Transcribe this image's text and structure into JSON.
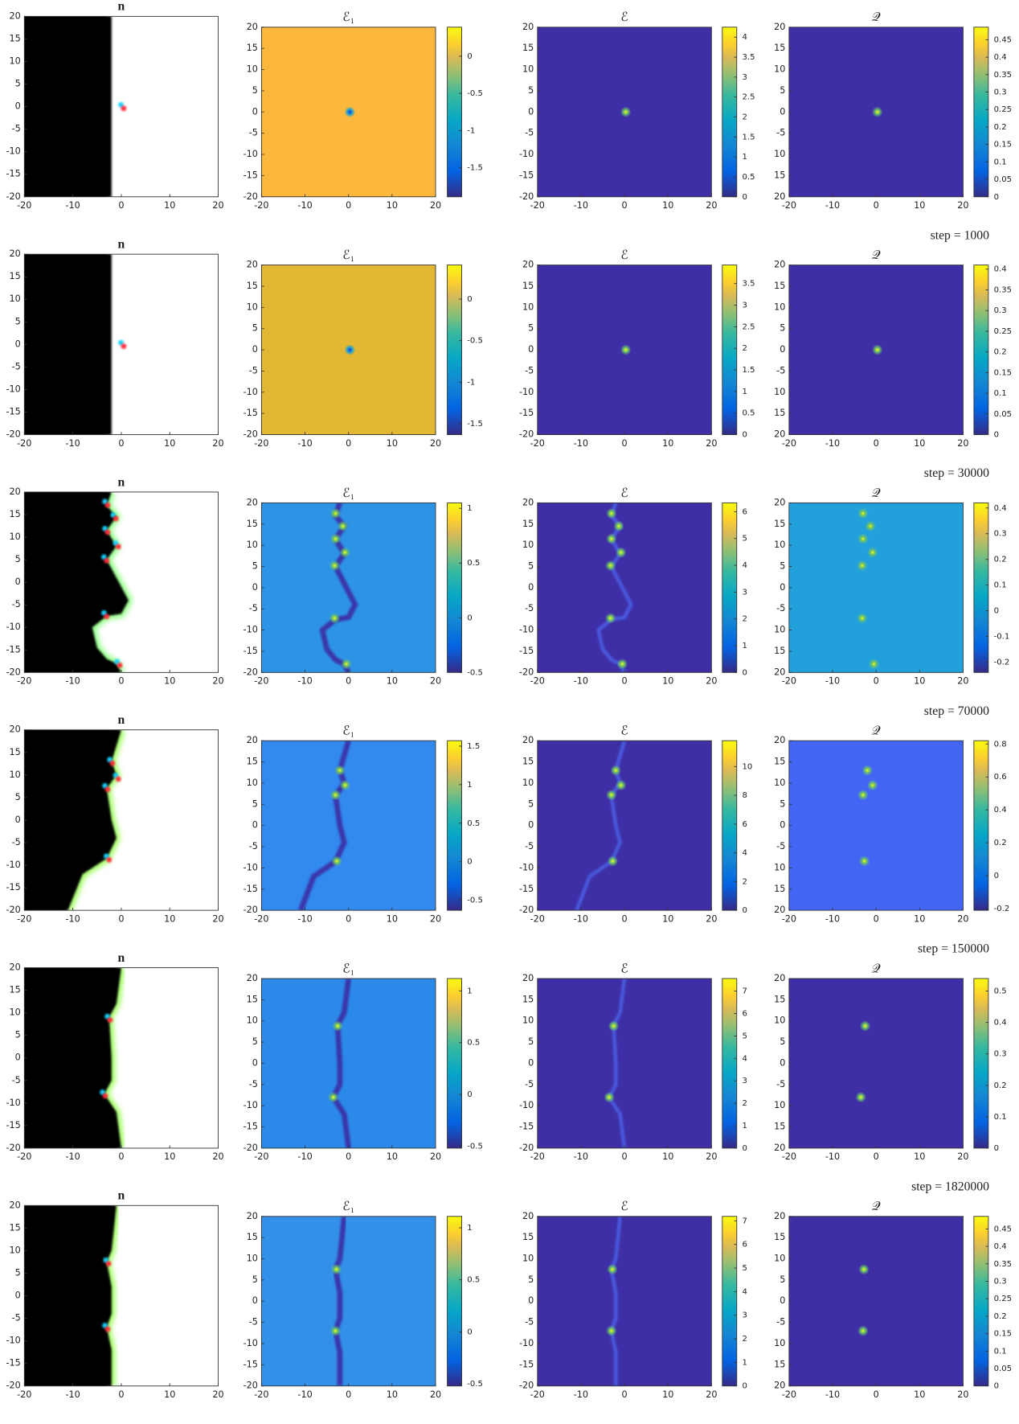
{
  "chart_data": [
    {
      "type": "heatmap",
      "title": "n",
      "xlim": [
        -20,
        20
      ],
      "ylim": [
        -20,
        20
      ],
      "xticks": [
        -20,
        -10,
        0,
        10,
        20
      ],
      "yticks": [
        -20,
        -15,
        -10,
        -5,
        0,
        5,
        10,
        15,
        20
      ]
    },
    {
      "type": "heatmap",
      "title": "ℰ₁",
      "xlim": [
        -20,
        20
      ],
      "ylim": [
        -20,
        20
      ],
      "xticks": [
        -20,
        -10,
        0,
        10,
        20
      ],
      "yticks": [
        -20,
        -15,
        -10,
        -5,
        0,
        5,
        10,
        15,
        20
      ],
      "clim": [
        -1.89,
        0.39
      ],
      "cticks": [
        -1.5,
        -1,
        -0.5,
        0
      ]
    },
    {
      "type": "heatmap",
      "title": "ℰ",
      "xlim": [
        -20,
        20
      ],
      "ylim": [
        -20,
        20
      ],
      "xticks": [
        -20,
        -10,
        0,
        10,
        20
      ],
      "yticks": [
        -20,
        -15,
        -10,
        -5,
        0,
        5,
        10,
        15,
        20
      ],
      "clim": [
        0,
        4.25
      ],
      "cticks": [
        0,
        0.5,
        1,
        1.5,
        2,
        2.5,
        3,
        3.5,
        4
      ]
    },
    {
      "type": "heatmap",
      "title": "𝒬",
      "xlim": [
        -20,
        20
      ],
      "ylim": [
        -20,
        20
      ],
      "xticks": [
        -20,
        -10,
        0,
        10,
        20
      ],
      "yticks": [
        {
          "value": -20,
          "label": "20"
        },
        {
          "value": -15,
          "label": "15"
        },
        {
          "value": -10,
          "label": "10"
        },
        -5,
        0,
        5,
        10,
        15,
        20
      ],
      "clim": [
        0,
        0.486
      ],
      "cticks": [
        0,
        0.05,
        0.1,
        0.15,
        0.2,
        0.25,
        0.3,
        0.35,
        0.4,
        0.45
      ]
    },
    {
      "type": "heatmap",
      "title": "n",
      "xlim": [
        -20,
        20
      ],
      "ylim": [
        -20,
        20
      ],
      "xticks": [
        -20,
        -10,
        0,
        10,
        20
      ],
      "yticks": [
        -20,
        -15,
        -10,
        -5,
        0,
        5,
        10,
        15,
        20
      ]
    },
    {
      "type": "heatmap",
      "title": "ℰ₁",
      "xlim": [
        -20,
        20
      ],
      "ylim": [
        -20,
        20
      ],
      "xticks": [
        -20,
        -10,
        0,
        10,
        20
      ],
      "yticks": [
        -20,
        -15,
        -10,
        -5,
        0,
        5,
        10,
        15,
        20
      ],
      "clim": [
        -1.63,
        0.41
      ],
      "cticks": [
        -1.5,
        -1,
        -0.5,
        0
      ]
    },
    {
      "type": "heatmap",
      "title": "ℰ",
      "xlim": [
        -20,
        20
      ],
      "ylim": [
        -20,
        20
      ],
      "xticks": [
        -20,
        -10,
        0,
        10,
        20
      ],
      "yticks": [
        -20,
        -15,
        -10,
        -5,
        0,
        5,
        10,
        15,
        20
      ],
      "clim": [
        0,
        3.93
      ],
      "cticks": [
        0,
        0.5,
        1,
        1.5,
        2,
        2.5,
        3,
        3.5
      ]
    },
    {
      "type": "heatmap",
      "title": "𝒬",
      "annotation": "step = 1000",
      "xlim": [
        -20,
        20
      ],
      "ylim": [
        -20,
        20
      ],
      "xticks": [
        -20,
        -10,
        0,
        10,
        20
      ],
      "yticks": [
        {
          "value": -20,
          "label": "20"
        },
        {
          "value": -15,
          "label": "15"
        },
        {
          "value": -10,
          "label": "10"
        },
        -5,
        0,
        5,
        10,
        15,
        20
      ],
      "clim": [
        0,
        0.41
      ],
      "cticks": [
        0,
        0.05,
        0.1,
        0.15,
        0.2,
        0.25,
        0.3,
        0.35,
        0.4
      ]
    },
    {
      "type": "heatmap",
      "title": "n",
      "xlim": [
        -20,
        20
      ],
      "ylim": [
        -20,
        20
      ],
      "xticks": [
        -20,
        -10,
        0,
        10,
        20
      ],
      "yticks": [
        -20,
        -15,
        -10,
        -5,
        0,
        5,
        10,
        15,
        20
      ]
    },
    {
      "type": "heatmap",
      "title": "ℰ₁",
      "xlim": [
        -20,
        20
      ],
      "ylim": [
        -20,
        20
      ],
      "xticks": [
        -20,
        -10,
        0,
        10,
        20
      ],
      "yticks": [
        -20,
        -15,
        -10,
        -5,
        0,
        5,
        10,
        15,
        20
      ],
      "clim": [
        -0.5,
        1.05
      ],
      "cticks": [
        -0.5,
        0,
        0.5,
        1
      ]
    },
    {
      "type": "heatmap",
      "title": "ℰ",
      "xlim": [
        -20,
        20
      ],
      "ylim": [
        -20,
        20
      ],
      "xticks": [
        -20,
        -10,
        0,
        10,
        20
      ],
      "yticks": [
        -20,
        -15,
        -10,
        -5,
        0,
        5,
        10,
        15,
        20
      ],
      "clim": [
        0,
        6.33
      ],
      "cticks": [
        0,
        1,
        2,
        3,
        4,
        5,
        6
      ]
    },
    {
      "type": "heatmap",
      "title": "𝒬",
      "annotation": "step = 30000",
      "xlim": [
        -20,
        20
      ],
      "ylim": [
        -20,
        20
      ],
      "xticks": [
        -20,
        -10,
        0,
        10,
        20
      ],
      "yticks": [
        {
          "value": -20,
          "label": "20"
        },
        {
          "value": -15,
          "label": "15"
        },
        {
          "value": -10,
          "label": "10"
        },
        -5,
        0,
        5,
        10,
        15,
        20
      ],
      "clim": [
        -0.24,
        0.42
      ],
      "cticks": [
        -0.2,
        -0.1,
        0,
        0.1,
        0.2,
        0.3,
        0.4
      ]
    },
    {
      "type": "heatmap",
      "title": "n",
      "xlim": [
        -20,
        20
      ],
      "ylim": [
        -20,
        20
      ],
      "xticks": [
        -20,
        -10,
        0,
        10,
        20
      ],
      "yticks": [
        -20,
        -15,
        -10,
        -5,
        0,
        5,
        10,
        15,
        20
      ]
    },
    {
      "type": "heatmap",
      "title": "ℰ₁",
      "xlim": [
        -20,
        20
      ],
      "ylim": [
        -20,
        20
      ],
      "xticks": [
        -20,
        -10,
        0,
        10,
        20
      ],
      "yticks": [
        -20,
        -15,
        -10,
        -5,
        0,
        5,
        10,
        15,
        20
      ],
      "clim": [
        -0.63,
        1.57
      ],
      "cticks": [
        -0.5,
        0,
        0.5,
        1,
        1.5
      ]
    },
    {
      "type": "heatmap",
      "title": "ℰ",
      "xlim": [
        -20,
        20
      ],
      "ylim": [
        -20,
        20
      ],
      "xticks": [
        -20,
        -10,
        0,
        10,
        20
      ],
      "yticks": [
        -20,
        -15,
        -10,
        -5,
        0,
        5,
        10,
        15,
        20
      ],
      "clim": [
        0,
        11.8
      ],
      "cticks": [
        0,
        2,
        4,
        6,
        8,
        10
      ]
    },
    {
      "type": "heatmap",
      "title": "𝒬",
      "annotation": "step = 70000",
      "xlim": [
        -20,
        20
      ],
      "ylim": [
        -20,
        20
      ],
      "xticks": [
        -20,
        -10,
        0,
        10,
        20
      ],
      "yticks": [
        {
          "value": -20,
          "label": "20"
        },
        {
          "value": -15,
          "label": "15"
        },
        {
          "value": -10,
          "label": "10"
        },
        -5,
        0,
        5,
        10,
        15,
        20
      ],
      "clim": [
        -0.21,
        0.82
      ],
      "cticks": [
        -0.2,
        0,
        0.2,
        0.4,
        0.6,
        0.8
      ]
    },
    {
      "type": "heatmap",
      "title": "n",
      "xlim": [
        -20,
        20
      ],
      "ylim": [
        -20,
        20
      ],
      "xticks": [
        -20,
        -10,
        0,
        10,
        20
      ],
      "yticks": [
        -20,
        -15,
        -10,
        -5,
        0,
        5,
        10,
        15,
        20
      ]
    },
    {
      "type": "heatmap",
      "title": "ℰ₁",
      "xlim": [
        -20,
        20
      ],
      "ylim": [
        -20,
        20
      ],
      "xticks": [
        -20,
        -10,
        0,
        10,
        20
      ],
      "yticks": [
        -20,
        -15,
        -10,
        -5,
        0,
        5,
        10,
        15,
        20
      ],
      "clim": [
        -0.52,
        1.12
      ],
      "cticks": [
        -0.5,
        0,
        0.5,
        1
      ]
    },
    {
      "type": "heatmap",
      "title": "ℰ",
      "xlim": [
        -20,
        20
      ],
      "ylim": [
        -20,
        20
      ],
      "xticks": [
        -20,
        -10,
        0,
        10,
        20
      ],
      "yticks": [
        -20,
        -15,
        -10,
        -5,
        0,
        5,
        10,
        15,
        20
      ],
      "clim": [
        0,
        7.56
      ],
      "cticks": [
        0,
        1,
        2,
        3,
        4,
        5,
        6,
        7
      ]
    },
    {
      "type": "heatmap",
      "title": "𝒬",
      "annotation": "step = 150000",
      "xlim": [
        -20,
        20
      ],
      "ylim": [
        -20,
        20
      ],
      "xticks": [
        -20,
        -10,
        0,
        10,
        20
      ],
      "yticks": [
        {
          "value": -20,
          "label": "20"
        },
        {
          "value": -15,
          "label": "15"
        },
        {
          "value": -10,
          "label": "10"
        },
        -5,
        0,
        5,
        10,
        15,
        20
      ],
      "clim": [
        0,
        0.54
      ],
      "cticks": [
        0,
        0.1,
        0.2,
        0.3,
        0.4,
        0.5
      ]
    },
    {
      "type": "heatmap",
      "title": "n",
      "xlim": [
        -20,
        20
      ],
      "ylim": [
        -20,
        20
      ],
      "xticks": [
        -20,
        -10,
        0,
        10,
        20
      ],
      "yticks": [
        -20,
        -15,
        -10,
        -5,
        0,
        5,
        10,
        15,
        20
      ]
    },
    {
      "type": "heatmap",
      "title": "ℰ₁",
      "xlim": [
        -20,
        20
      ],
      "ylim": [
        -20,
        20
      ],
      "xticks": [
        -20,
        -10,
        0,
        10,
        20
      ],
      "yticks": [
        -20,
        -15,
        -10,
        -5,
        0,
        5,
        10,
        15,
        20
      ],
      "clim": [
        -0.52,
        1.11
      ],
      "cticks": [
        -0.5,
        0,
        0.5,
        1
      ]
    },
    {
      "type": "heatmap",
      "title": "ℰ",
      "xlim": [
        -20,
        20
      ],
      "ylim": [
        -20,
        20
      ],
      "xticks": [
        -20,
        -10,
        0,
        10,
        20
      ],
      "yticks": [
        -20,
        -15,
        -10,
        -5,
        0,
        5,
        10,
        15,
        20
      ],
      "clim": [
        0,
        7.19
      ],
      "cticks": [
        0,
        1,
        2,
        3,
        4,
        5,
        6,
        7
      ]
    },
    {
      "type": "heatmap",
      "title": "𝒬",
      "annotation": "step = 1820000",
      "xlim": [
        -20,
        20
      ],
      "ylim": [
        -20,
        20
      ],
      "xticks": [
        -20,
        -10,
        0,
        10,
        20
      ],
      "yticks": [
        {
          "value": -20,
          "label": "20"
        },
        {
          "value": -15,
          "label": "15"
        },
        {
          "value": -10,
          "label": "10"
        },
        -5,
        0,
        5,
        10,
        15,
        20
      ],
      "clim": [
        0,
        0.486
      ],
      "cticks": [
        0,
        0.05,
        0.1,
        0.15,
        0.2,
        0.25,
        0.3,
        0.35,
        0.4,
        0.45
      ]
    }
  ]
}
